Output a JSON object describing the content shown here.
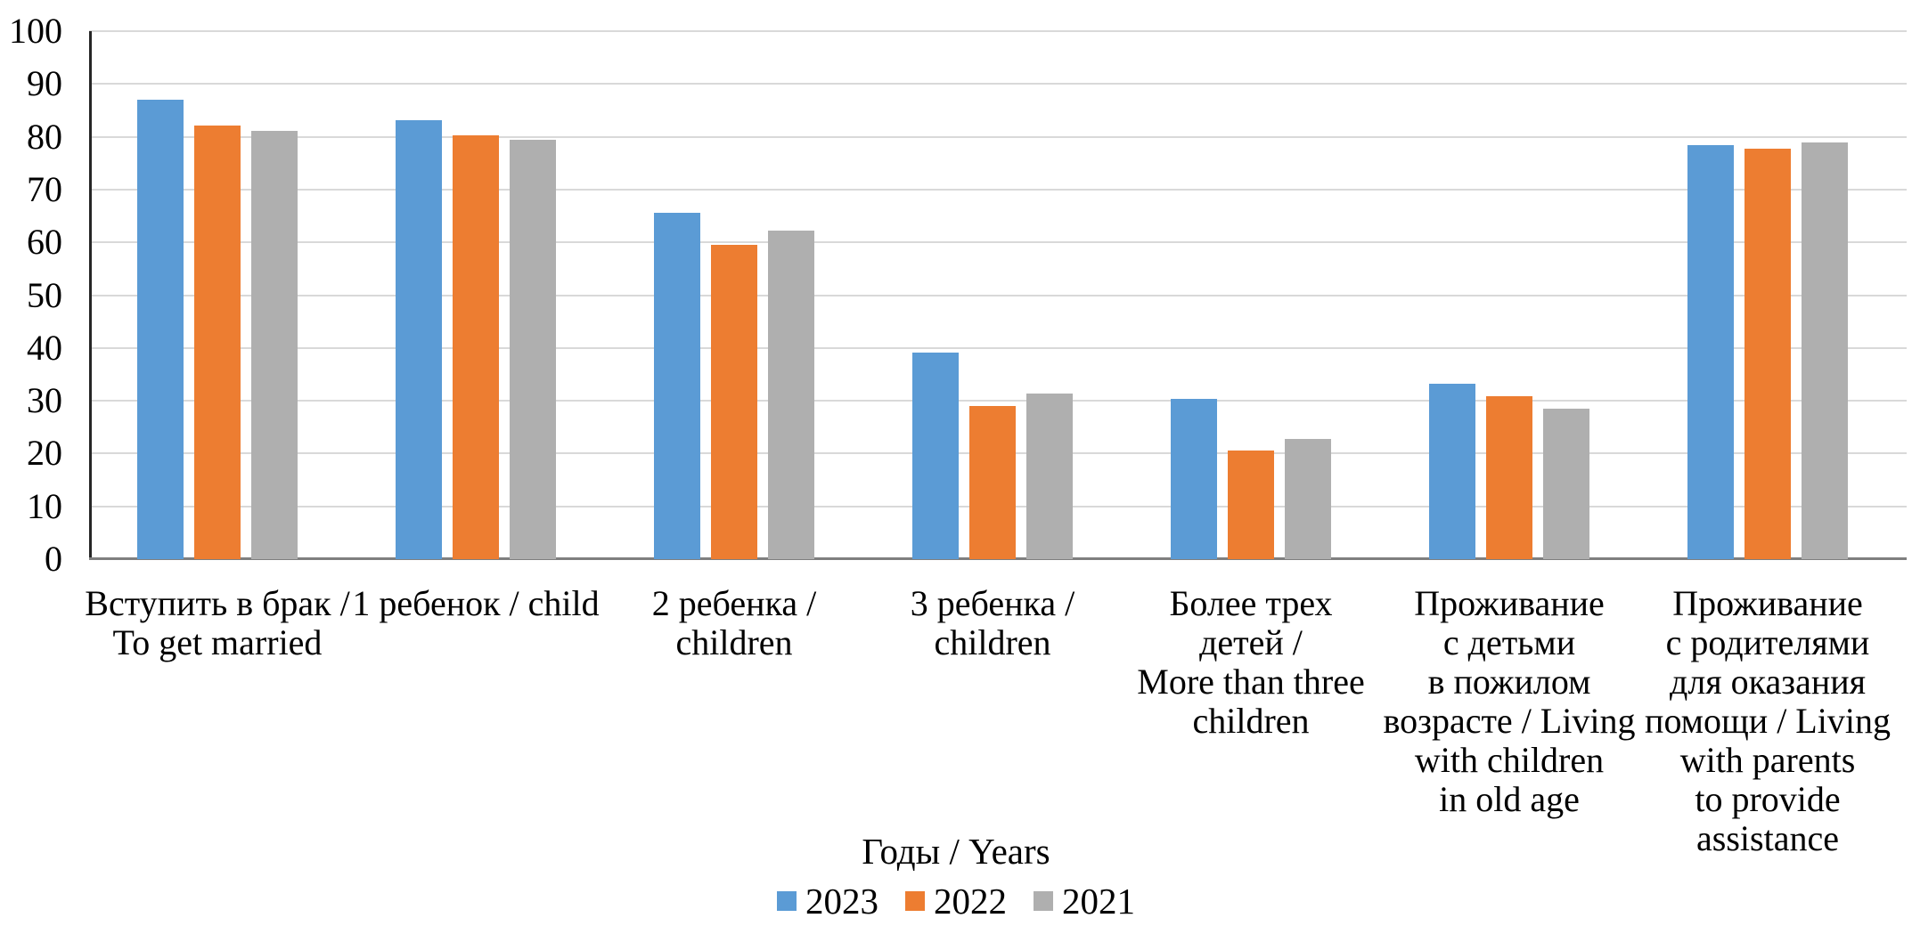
{
  "chart_data": {
    "type": "bar",
    "title": "",
    "xlabel": "",
    "ylabel": "",
    "ylim": [
      0,
      100
    ],
    "yticks": [
      0,
      10,
      20,
      30,
      40,
      50,
      60,
      70,
      80,
      90,
      100
    ],
    "grid": true,
    "legend_position": "bottom",
    "legend_title": "Годы / Years",
    "categories": [
      "Вступить в брак /\nTo get married",
      "1 ребенок / child",
      "2 ребенка /\nchildren",
      "3 ребенка /\nchildren",
      "Более трех\nдетей /\nMore than three\nchildren",
      "Проживание\nс детьми\nв пожилом\nвозрасте / Living\nwith children\nin old age",
      "Проживание\nс родителями\nдля оказания\nпомощи / Living\nwith parents\nto provide\nassistance"
    ],
    "series": [
      {
        "name": "2023",
        "color": "#5B9BD5",
        "values": [
          87.0,
          83.2,
          65.6,
          39.2,
          30.4,
          33.3,
          78.4
        ]
      },
      {
        "name": "2022",
        "color": "#ED7D31",
        "values": [
          82.1,
          80.3,
          59.6,
          29.0,
          20.6,
          30.8,
          77.8
        ]
      },
      {
        "name": "2021",
        "color": "#AFAFAF",
        "values": [
          81.1,
          79.5,
          62.2,
          31.4,
          22.7,
          28.5,
          79.0
        ]
      }
    ],
    "colors": {
      "background": "#FFFFFF",
      "gridline": "#D9D9D9",
      "y_axis_line": "#262626",
      "x_axis_line": "#7F7F7F",
      "text": "#000000"
    }
  }
}
